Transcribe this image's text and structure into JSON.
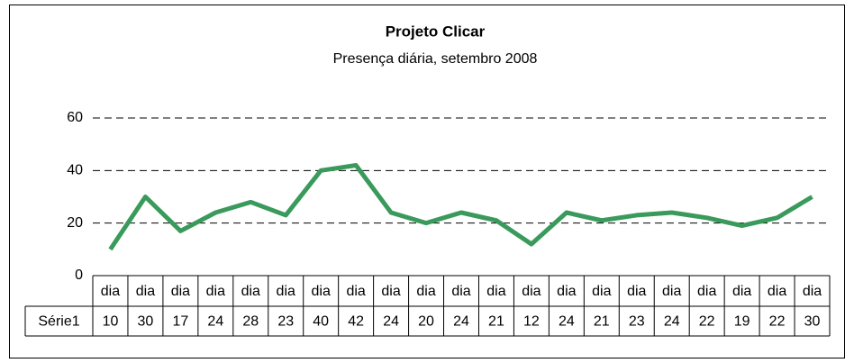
{
  "chart_data": {
    "type": "line",
    "title": "Projeto Clicar",
    "subtitle": "Presença diária, setembro 2008",
    "categories": [
      "dia",
      "dia",
      "dia",
      "dia",
      "dia",
      "dia",
      "dia",
      "dia",
      "dia",
      "dia",
      "dia",
      "dia",
      "dia",
      "dia",
      "dia",
      "dia",
      "dia",
      "dia",
      "dia",
      "dia",
      "dia"
    ],
    "series": [
      {
        "name": "Série1",
        "color": "#3a9a5c",
        "values": [
          10,
          30,
          17,
          24,
          28,
          23,
          40,
          42,
          24,
          20,
          24,
          21,
          12,
          24,
          21,
          23,
          24,
          22,
          19,
          22,
          30
        ]
      }
    ],
    "ylim": [
      0,
      60
    ],
    "yticks": [
      0,
      20,
      40,
      60
    ],
    "grid": true,
    "data_table": true
  }
}
